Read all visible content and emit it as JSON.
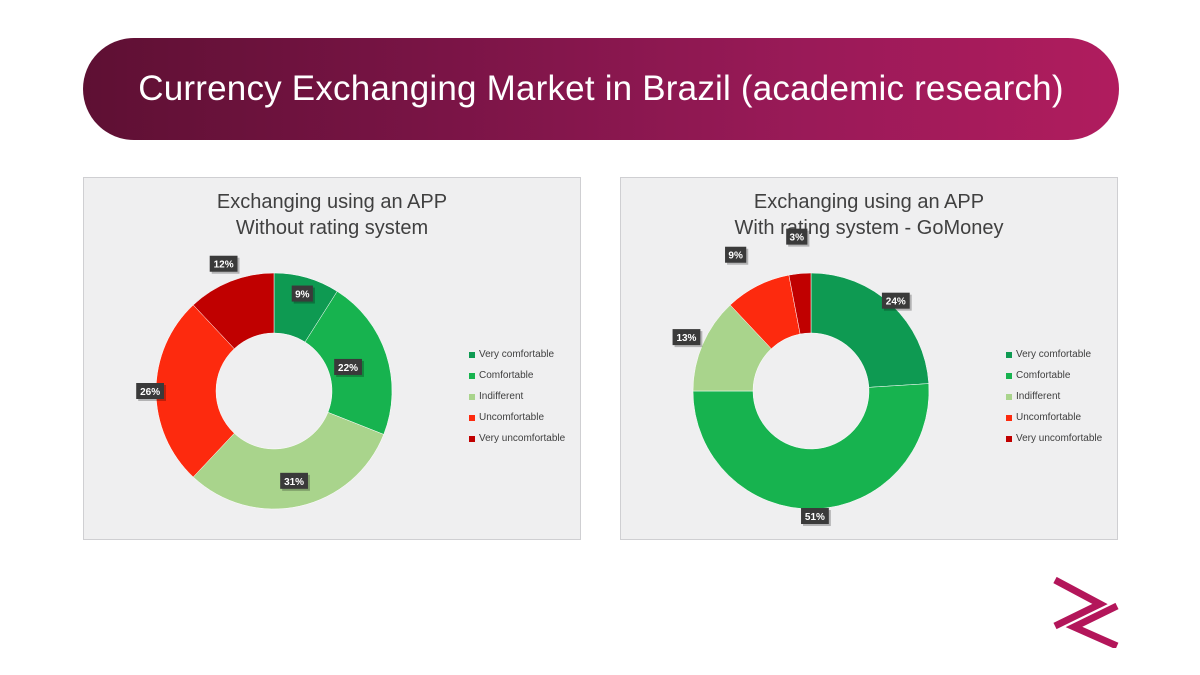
{
  "page": {
    "title": "Currency Exchanging Market in Brazil (academic research)"
  },
  "legend_labels": [
    "Very comfortable",
    "Comfortable",
    "Indifferent",
    "Uncomfortable",
    "Very uncomfortable"
  ],
  "colors": {
    "very_comfortable": "#0e9a52",
    "comfortable": "#17b34f",
    "indifferent": "#a9d48c",
    "uncomfortable": "#fd2a0e",
    "very_uncomfortable": "#c00000",
    "banner_start": "#5e1033",
    "banner_end": "#b01c5e",
    "logo": "#b3165a"
  },
  "chart_data": [
    {
      "type": "pie",
      "variant": "donut",
      "title_line1": "Exchanging using an APP",
      "title_line2": "Without rating system",
      "categories": [
        "Very comfortable",
        "Comfortable",
        "Indifferent",
        "Uncomfortable",
        "Very uncomfortable"
      ],
      "values": [
        9,
        22,
        31,
        26,
        12
      ],
      "labels": [
        "9%",
        "22%",
        "31%",
        "26%",
        "12%"
      ],
      "colors": [
        "#0e9a52",
        "#17b34f",
        "#a9d48c",
        "#fd2a0e",
        "#c00000"
      ],
      "legend_position": "right"
    },
    {
      "type": "pie",
      "variant": "donut",
      "title_line1": "Exchanging using an APP",
      "title_line2": "With rating system - GoMoney",
      "categories": [
        "Very comfortable",
        "Comfortable",
        "Indifferent",
        "Uncomfortable",
        "Very uncomfortable"
      ],
      "values": [
        24,
        51,
        13,
        9,
        3
      ],
      "labels": [
        "24%",
        "51%",
        "13%",
        "9%",
        "3%"
      ],
      "colors": [
        "#0e9a52",
        "#17b34f",
        "#a9d48c",
        "#fd2a0e",
        "#c00000"
      ],
      "legend_position": "right"
    }
  ]
}
